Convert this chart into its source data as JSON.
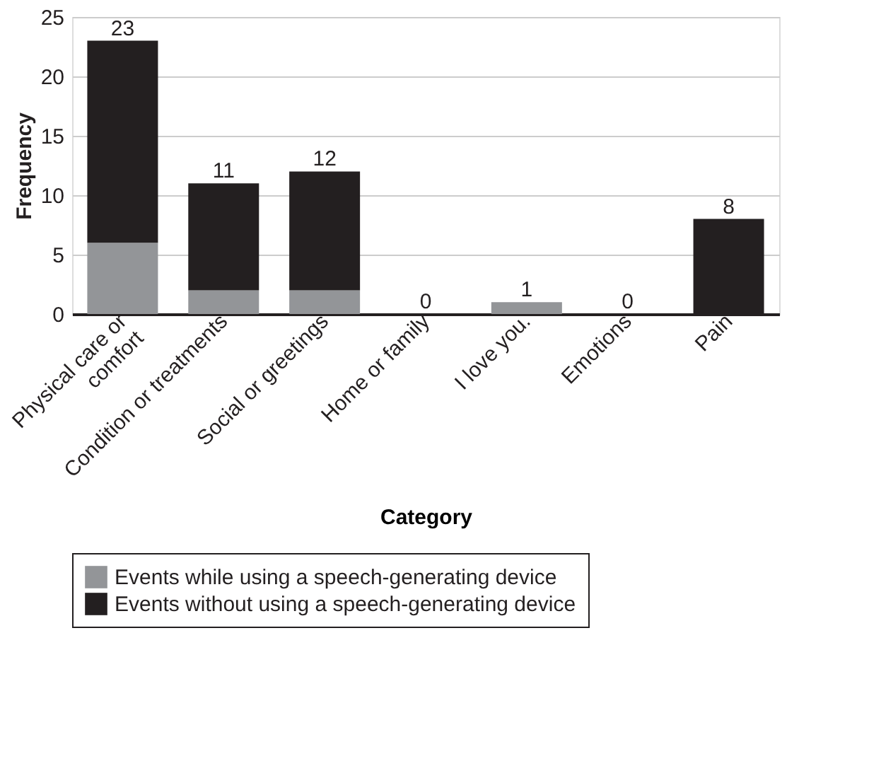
{
  "chart_data": {
    "type": "bar",
    "stacked": true,
    "xlabel": "Category",
    "ylabel": "Frequency",
    "categories": [
      "Physical care or\ncomfort",
      "Condition or treatments",
      "Social or greetings",
      "Home or family",
      "I love you.",
      "Emotions",
      "Pain"
    ],
    "series": [
      {
        "name": "Events while using a speech-generating device",
        "color": "#939598",
        "values": [
          6,
          2,
          2,
          0,
          1,
          0,
          0
        ]
      },
      {
        "name": "Events without using a speech-generating device",
        "color": "#231f20",
        "values": [
          17,
          9,
          10,
          0,
          0,
          0,
          8
        ]
      }
    ],
    "totals": [
      "23",
      "11",
      "12",
      "0",
      "1",
      "0",
      "8"
    ],
    "ylim": [
      0,
      25
    ],
    "yticks": [
      0,
      5,
      10,
      15,
      20,
      25
    ],
    "grid": "y",
    "legend": "bottom"
  }
}
